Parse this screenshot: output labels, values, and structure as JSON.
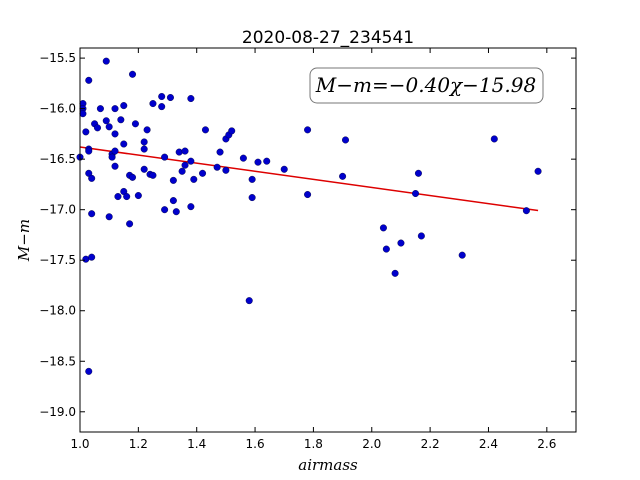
{
  "chart_data": {
    "type": "scatter",
    "title": "2020-08-27_234541",
    "xlabel": "airmass",
    "ylabel": "M−m",
    "xlim": [
      1.0,
      2.7
    ],
    "ylim": [
      -19.2,
      -15.4
    ],
    "y_inverted": true,
    "x_ticks": [
      "1.0",
      "1.2",
      "1.4",
      "1.6",
      "1.8",
      "2.0",
      "2.2",
      "2.4",
      "2.6"
    ],
    "y_ticks": [
      "−15.5",
      "−16.0",
      "−16.5",
      "−17.0",
      "−17.5",
      "−18.0",
      "−18.5",
      "−19.0"
    ],
    "annotation": "M−m=−0.40χ−15.98",
    "point_color": "#0000cc",
    "line_color": "#dd0000",
    "fit": {
      "slope": -0.4,
      "intercept": -15.98,
      "x_range": [
        1.0,
        2.57
      ]
    },
    "points": [
      [
        1.0,
        -16.48
      ],
      [
        1.01,
        -15.95
      ],
      [
        1.01,
        -16.0
      ],
      [
        1.01,
        -16.05
      ],
      [
        1.02,
        -16.23
      ],
      [
        1.02,
        -17.49
      ],
      [
        1.03,
        -15.72
      ],
      [
        1.03,
        -16.4
      ],
      [
        1.03,
        -16.42
      ],
      [
        1.03,
        -16.64
      ],
      [
        1.04,
        -16.69
      ],
      [
        1.04,
        -17.47
      ],
      [
        1.03,
        -18.6
      ],
      [
        1.04,
        -17.04
      ],
      [
        1.05,
        -16.15
      ],
      [
        1.06,
        -16.19
      ],
      [
        1.07,
        -16.0
      ],
      [
        1.09,
        -15.53
      ],
      [
        1.09,
        -16.12
      ],
      [
        1.1,
        -16.18
      ],
      [
        1.1,
        -17.07
      ],
      [
        1.11,
        -16.45
      ],
      [
        1.11,
        -16.48
      ],
      [
        1.12,
        -16.0
      ],
      [
        1.12,
        -16.25
      ],
      [
        1.12,
        -16.42
      ],
      [
        1.12,
        -16.57
      ],
      [
        1.13,
        -16.87
      ],
      [
        1.14,
        -16.11
      ],
      [
        1.15,
        -15.97
      ],
      [
        1.15,
        -16.35
      ],
      [
        1.15,
        -16.82
      ],
      [
        1.16,
        -16.87
      ],
      [
        1.17,
        -16.66
      ],
      [
        1.17,
        -17.14
      ],
      [
        1.18,
        -15.66
      ],
      [
        1.18,
        -16.68
      ],
      [
        1.19,
        -16.15
      ],
      [
        1.2,
        -16.86
      ],
      [
        1.22,
        -16.33
      ],
      [
        1.22,
        -16.4
      ],
      [
        1.22,
        -16.6
      ],
      [
        1.23,
        -16.21
      ],
      [
        1.24,
        -16.65
      ],
      [
        1.25,
        -15.95
      ],
      [
        1.25,
        -16.66
      ],
      [
        1.28,
        -15.88
      ],
      [
        1.28,
        -15.98
      ],
      [
        1.29,
        -16.48
      ],
      [
        1.29,
        -17.0
      ],
      [
        1.31,
        -15.89
      ],
      [
        1.32,
        -16.71
      ],
      [
        1.32,
        -16.91
      ],
      [
        1.33,
        -17.02
      ],
      [
        1.34,
        -16.43
      ],
      [
        1.35,
        -16.62
      ],
      [
        1.36,
        -16.42
      ],
      [
        1.36,
        -16.56
      ],
      [
        1.38,
        -16.52
      ],
      [
        1.38,
        -15.9
      ],
      [
        1.38,
        -16.97
      ],
      [
        1.39,
        -16.7
      ],
      [
        1.42,
        -16.64
      ],
      [
        1.43,
        -16.21
      ],
      [
        1.47,
        -16.58
      ],
      [
        1.48,
        -16.43
      ],
      [
        1.5,
        -16.61
      ],
      [
        1.5,
        -16.3
      ],
      [
        1.51,
        -16.26
      ],
      [
        1.52,
        -16.22
      ],
      [
        1.56,
        -16.49
      ],
      [
        1.58,
        -17.9
      ],
      [
        1.59,
        -16.7
      ],
      [
        1.59,
        -16.88
      ],
      [
        1.61,
        -16.53
      ],
      [
        1.64,
        -16.52
      ],
      [
        1.7,
        -16.6
      ],
      [
        1.78,
        -16.21
      ],
      [
        1.78,
        -16.85
      ],
      [
        1.9,
        -16.67
      ],
      [
        1.91,
        -16.31
      ],
      [
        2.04,
        -17.18
      ],
      [
        2.05,
        -17.39
      ],
      [
        2.08,
        -17.63
      ],
      [
        2.1,
        -17.33
      ],
      [
        2.15,
        -16.84
      ],
      [
        2.16,
        -16.64
      ],
      [
        2.17,
        -17.26
      ],
      [
        2.31,
        -17.45
      ],
      [
        2.42,
        -16.3
      ],
      [
        2.53,
        -17.01
      ],
      [
        2.57,
        -16.62
      ]
    ]
  }
}
